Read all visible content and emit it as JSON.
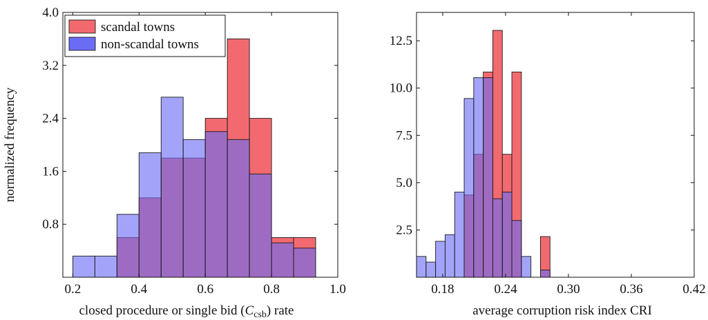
{
  "colors": {
    "scandal": "#f26a6f",
    "non_scandal": "#6b6cf5",
    "overlap": "#7a3ac4",
    "bar_stroke": "#1a1a1a"
  },
  "chart_data": [
    {
      "type": "bar",
      "subtype": "histogram",
      "xlabel_pre": "closed procedure or single bid (",
      "xlabel_var": "C",
      "xlabel_sub": "csb",
      "xlabel_post": ") rate",
      "ylabel": "normalized frequency",
      "xlim": [
        0.17,
        1.0
      ],
      "ylim": [
        0,
        4.0
      ],
      "xticks": [
        "0.2",
        "0.4",
        "0.6",
        "0.8",
        "1.0"
      ],
      "yticks": [
        "0.8",
        "1.6",
        "2.4",
        "3.2",
        "4.0"
      ],
      "grid": false,
      "legend": {
        "position": "top-left",
        "entries": [
          "scandal towns",
          "non-scandal towns"
        ]
      },
      "bin_edges": [
        0.2,
        0.2667,
        0.3333,
        0.4,
        0.4667,
        0.5333,
        0.6,
        0.6667,
        0.7333,
        0.8,
        0.8667,
        0.9333
      ],
      "series": [
        {
          "name": "scandal towns",
          "values": [
            0,
            0,
            0.6,
            1.2,
            1.8,
            1.8,
            2.4,
            3.6,
            2.4,
            0.6,
            0.6
          ]
        },
        {
          "name": "non-scandal towns",
          "values": [
            0.32,
            0.32,
            0.95,
            1.88,
            2.72,
            2.08,
            2.2,
            2.08,
            1.56,
            0.52,
            0.44
          ]
        }
      ]
    },
    {
      "type": "bar",
      "subtype": "histogram",
      "xlabel": "average corruption risk index CRI",
      "ylabel": "",
      "xlim": [
        0.155,
        0.42
      ],
      "ylim": [
        0,
        14.0
      ],
      "xticks": [
        "0.18",
        "0.24",
        "0.30",
        "0.36",
        "0.42"
      ],
      "yticks": [
        "2.5",
        "5.0",
        "7.5",
        "10.0",
        "12.5"
      ],
      "grid": false,
      "legend": null,
      "bin_edges": [
        0.155,
        0.1641,
        0.1732,
        0.1823,
        0.1914,
        0.2005,
        0.2096,
        0.2187,
        0.2278,
        0.2369,
        0.246,
        0.2551,
        0.2642,
        0.2733,
        0.2824,
        0.2915,
        0.3006,
        0.3097,
        0.3188,
        0.3279,
        0.337,
        0.3461,
        0.3552,
        0.3643,
        0.3734,
        0.3825,
        0.3916,
        0.4007
      ],
      "series": [
        {
          "name": "scandal towns",
          "values": [
            0,
            0,
            0,
            0,
            0,
            4.35,
            6.5,
            10.85,
            13.05,
            6.5,
            10.85,
            0,
            0,
            2.15,
            0
          ]
        },
        {
          "name": "non-scandal towns",
          "values": [
            1.1,
            0.8,
            1.9,
            2.25,
            4.5,
            9.45,
            10.55,
            10.55,
            4.15,
            4.5,
            3.0,
            1.1,
            0,
            0.38,
            0
          ]
        }
      ]
    }
  ]
}
